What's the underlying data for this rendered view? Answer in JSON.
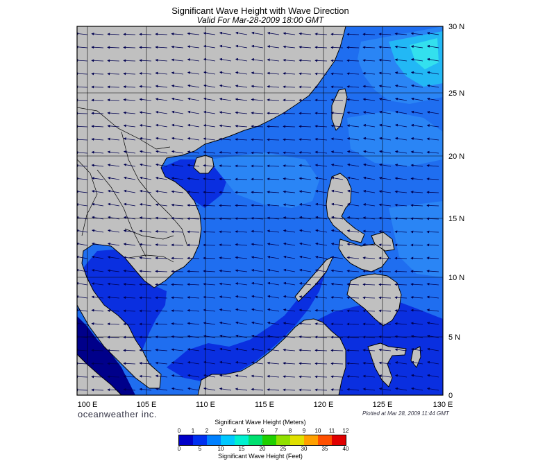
{
  "title": "Significant Wave Height with Wave Direction",
  "subtitle": "Valid For Mar-28-2009 18:00 GMT",
  "brand": "oceanweather inc.",
  "plotted": "Plotted at Mar 28, 2009 11:44 GMT",
  "map": {
    "lon_range": [
      99,
      130
    ],
    "lat_range": [
      0,
      30
    ],
    "lon_ticks": [
      "100 E",
      "105 E",
      "110 E",
      "115 E",
      "120 E",
      "125 E",
      "130 E"
    ],
    "lat_ticks": [
      "30 N",
      "25 N",
      "20 N",
      "15 N",
      "10 N",
      "5 N",
      "0"
    ],
    "colors": {
      "land": "#c0c0c0",
      "ocean_deep": "#0a2fe0",
      "ocean_mid": "#1f6ef0",
      "ocean_high": "#22b8f5",
      "ocean_peak": "#33e0ee",
      "coast": "#000000"
    }
  },
  "colorbar": {
    "meters_title": "Significant Wave Height (Meters)",
    "feet_title": "Significant Wave Height (Feet)",
    "meters_labels": [
      "0",
      "1",
      "2",
      "3",
      "4",
      "5",
      "6",
      "7",
      "8",
      "9",
      "10",
      "11",
      "12"
    ],
    "feet_labels": [
      "0",
      "5",
      "10",
      "15",
      "20",
      "25",
      "30",
      "35",
      "40"
    ],
    "colors": [
      "#0000c8",
      "#0030f0",
      "#0080ff",
      "#00c8ff",
      "#00f0d0",
      "#00e070",
      "#20d000",
      "#90e000",
      "#e0e000",
      "#ffa000",
      "#ff5000",
      "#e00000"
    ]
  }
}
